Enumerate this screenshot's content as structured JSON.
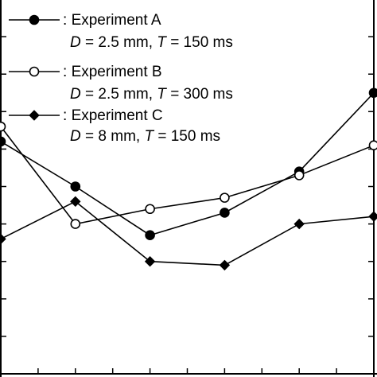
{
  "chart_data": {
    "type": "line",
    "title": "",
    "xlabel": "",
    "ylabel": "",
    "x": [
      0,
      1,
      2,
      3,
      4,
      5
    ],
    "xlim": [
      0.0,
      5.0
    ],
    "ylim": [
      0.0,
      1.0
    ],
    "x_ticks": [
      0.0,
      0.5,
      1.0,
      1.5,
      2.0,
      2.5,
      3.0,
      3.5,
      4.0,
      4.5,
      5.0
    ],
    "y_ticks": [
      0.0,
      0.1,
      0.2,
      0.3,
      0.4,
      0.5,
      0.6,
      0.7,
      0.8,
      0.9,
      1.0
    ],
    "grid": false,
    "legend_position": "top-left",
    "series": [
      {
        "name": "Experiment A",
        "condition": {
          "d_symbol": "D",
          "d_value": "= 2.5 mm, ",
          "t_symbol": "T",
          "t_value": "= 150 ms"
        },
        "marker": "filled-circle",
        "values": [
          0.62,
          0.5,
          0.37,
          0.43,
          0.54,
          0.75
        ]
      },
      {
        "name": "Experiment B",
        "condition": {
          "d_symbol": "D",
          "d_value": "= 2.5 mm, ",
          "t_symbol": "T",
          "t_value": "= 300 ms"
        },
        "marker": "open-circle",
        "values": [
          0.66,
          0.4,
          0.44,
          0.47,
          0.53,
          0.61
        ]
      },
      {
        "name": "Experiment C",
        "condition": {
          "d_symbol": "D",
          "d_value": "= 8 mm, ",
          "t_symbol": "T",
          "t_value": "= 150 ms"
        },
        "marker": "filled-diamond",
        "values": [
          0.36,
          0.46,
          0.3,
          0.29,
          0.4,
          0.42
        ]
      }
    ]
  },
  "legend_prefix": ": "
}
